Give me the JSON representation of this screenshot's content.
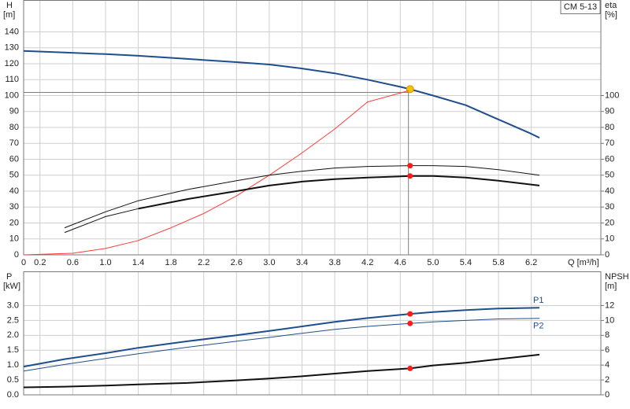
{
  "chart_data": [
    {
      "type": "line",
      "legend_text": "CM 5-13",
      "ylabel": "H",
      "yunit": "[m]",
      "y2label": "eta",
      "y2unit": "[%]",
      "xlabel": "Q [m³/h]",
      "xlim": [
        0,
        7.05
      ],
      "ylim": [
        0,
        160
      ],
      "y2lim": [
        0,
        160
      ],
      "grid": true,
      "xticks": [
        0,
        0.2,
        0.6,
        {
          "value": 1,
          "label": "1.0"
        },
        1.4,
        1.8,
        2.2,
        2.6,
        {
          "value": 3,
          "label": "3.0"
        },
        3.4,
        3.8,
        4.2,
        4.6,
        {
          "value": 5,
          "label": "5.0"
        },
        5.4,
        5.8,
        6.2
      ],
      "yticks": [
        0,
        10,
        20,
        30,
        40,
        50,
        60,
        70,
        80,
        90,
        100,
        110,
        120,
        130,
        140
      ],
      "y2ticks": [
        0,
        10,
        20,
        30,
        40,
        50,
        60,
        70,
        80,
        90,
        100
      ],
      "guide": {
        "x": 4.7,
        "y": 102,
        "color": "#808080"
      },
      "series": [
        {
          "color": "#1f4e8c",
          "width": 2,
          "axis": "y",
          "x": [
            0,
            0.5,
            1.0,
            1.4,
            2.0,
            2.6,
            3.0,
            3.4,
            3.8,
            4.2,
            4.6,
            4.72,
            5.0,
            5.4,
            5.8,
            6.2,
            6.3
          ],
          "values": [
            128,
            127,
            126,
            125,
            123,
            121,
            119.5,
            117,
            114,
            110,
            105.5,
            104,
            100,
            94,
            85,
            76,
            73.5
          ],
          "marker": {
            "x": 4.72,
            "value": 104,
            "color": "#f5c400"
          }
        },
        {
          "color": "#ff3b3b",
          "width": 1,
          "axis": "y",
          "x": [
            0,
            0.6,
            1.0,
            1.4,
            1.8,
            2.2,
            2.6,
            3.0,
            3.4,
            3.8,
            4.2,
            4.7
          ],
          "values": [
            0,
            1,
            4,
            9,
            17,
            26,
            37,
            50,
            64,
            79,
            96,
            103
          ]
        },
        {
          "color": "#111111",
          "width": 1,
          "axis": "y2",
          "x": [
            0.5,
            1.0,
            1.4,
            2.0,
            2.6,
            3.0,
            3.4,
            3.8,
            4.2,
            4.72,
            5.0,
            5.4,
            5.8,
            6.3
          ],
          "values": [
            17,
            27,
            34,
            41,
            46.5,
            50,
            52.5,
            54.5,
            55.5,
            56,
            56,
            55.5,
            53.5,
            50
          ],
          "marker": {
            "x": 4.72,
            "value": 56,
            "color": "#ff1a1a"
          }
        },
        {
          "color": "#111111",
          "width": 1,
          "axis": "y2",
          "x": [
            0.5,
            1.0,
            1.4
          ],
          "values": [
            14,
            24,
            29
          ]
        },
        {
          "color": "#111111",
          "width": 2,
          "axis": "y2",
          "x": [
            1.4,
            2.0,
            2.6,
            3.0,
            3.4,
            3.8,
            4.2,
            4.72,
            5.0,
            5.4,
            5.8,
            6.3
          ],
          "values": [
            29,
            35,
            40,
            43.5,
            46,
            47.5,
            48.5,
            49.5,
            49.5,
            48.5,
            46.5,
            43.5
          ],
          "marker": {
            "x": 4.72,
            "value": 49.5,
            "color": "#ff1a1a"
          }
        }
      ]
    },
    {
      "type": "line",
      "ylabel": "P",
      "yunit": "[kW]",
      "y2label": "NPSH",
      "y2unit": "[m]",
      "xlim": [
        0,
        7.05
      ],
      "ylim": [
        0,
        4.15
      ],
      "y2lim": [
        0,
        16.6
      ],
      "grid": true,
      "yticks": [
        {
          "value": 0,
          "label": "0.0"
        },
        0.5,
        {
          "value": 1,
          "label": "1.0"
        },
        1.5,
        {
          "value": 2,
          "label": "2.0"
        },
        2.5,
        {
          "value": 3,
          "label": "3.0"
        }
      ],
      "y2ticks": [
        0,
        2,
        4,
        6,
        8,
        10,
        12
      ],
      "series": [
        {
          "name": "P1",
          "color": "#1f4e8c",
          "width": 2,
          "axis": "y",
          "x": [
            0,
            0.5,
            1.0,
            1.4,
            2.0,
            2.6,
            3.0,
            3.4,
            3.8,
            4.2,
            4.72,
            5.0,
            5.4,
            5.8,
            6.3
          ],
          "values": [
            0.95,
            1.2,
            1.4,
            1.58,
            1.8,
            2.0,
            2.15,
            2.3,
            2.45,
            2.58,
            2.72,
            2.78,
            2.85,
            2.9,
            2.93
          ],
          "marker": {
            "x": 4.72,
            "value": 2.72,
            "color": "#ff1a1a"
          }
        },
        {
          "name": "P2",
          "color": "#1f4e8c",
          "width": 1,
          "axis": "y",
          "x": [
            0,
            0.5,
            1.0,
            1.4,
            2.0,
            2.6,
            3.0,
            3.4,
            3.8,
            4.2,
            4.72,
            5.0,
            5.4,
            5.8,
            6.3
          ],
          "values": [
            0.8,
            1.02,
            1.22,
            1.38,
            1.6,
            1.8,
            1.93,
            2.07,
            2.2,
            2.3,
            2.4,
            2.45,
            2.5,
            2.55,
            2.57
          ],
          "marker": {
            "x": 4.72,
            "value": 2.4,
            "color": "#ff1a1a"
          }
        },
        {
          "color": "#111111",
          "width": 2,
          "axis": "y2",
          "x": [
            0,
            0.5,
            1.0,
            1.4,
            2.0,
            2.6,
            3.0,
            3.4,
            3.8,
            4.2,
            4.72,
            5.0,
            5.4,
            5.8,
            6.3
          ],
          "values": [
            1.0,
            1.1,
            1.25,
            1.4,
            1.6,
            1.95,
            2.2,
            2.5,
            2.85,
            3.2,
            3.55,
            3.95,
            4.3,
            4.8,
            5.4
          ],
          "marker": {
            "x": 4.72,
            "value": 3.55,
            "color": "#ff1a1a"
          }
        }
      ]
    }
  ]
}
